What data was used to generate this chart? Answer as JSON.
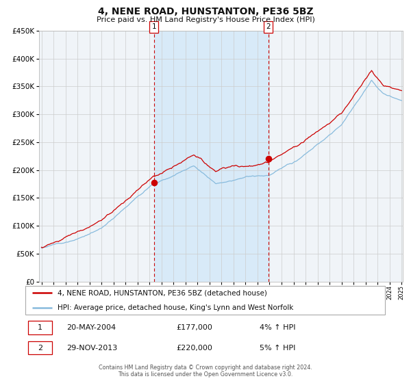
{
  "title": "4, NENE ROAD, HUNSTANTON, PE36 5BZ",
  "subtitle": "Price paid vs. HM Land Registry's House Price Index (HPI)",
  "red_label": "4, NENE ROAD, HUNSTANTON, PE36 5BZ (detached house)",
  "blue_label": "HPI: Average price, detached house, King's Lynn and West Norfolk",
  "transaction1_date": "20-MAY-2004",
  "transaction1_price": "£177,000",
  "transaction1_hpi": "4% ↑ HPI",
  "transaction2_date": "29-NOV-2013",
  "transaction2_price": "£220,000",
  "transaction2_hpi": "5% ↑ HPI",
  "footer_line1": "Contains HM Land Registry data © Crown copyright and database right 2024.",
  "footer_line2": "This data is licensed under the Open Government Licence v3.0.",
  "start_year": 1995,
  "end_year": 2025,
  "ylim_min": 0,
  "ylim_max": 450000,
  "transaction1_year": 2004.38,
  "transaction2_year": 2013.91,
  "transaction1_value": 177000,
  "transaction2_value": 220000,
  "background_color": "#ffffff",
  "plot_bg_color": "#f0f4f8",
  "shaded_region_color": "#d8eaf8",
  "grid_color": "#cccccc",
  "red_color": "#cc0000",
  "blue_color": "#88bbdd",
  "dashed_line_color": "#cc0000",
  "legend_border_color": "#aaaaaa",
  "table_num_border_color": "#cc0000"
}
